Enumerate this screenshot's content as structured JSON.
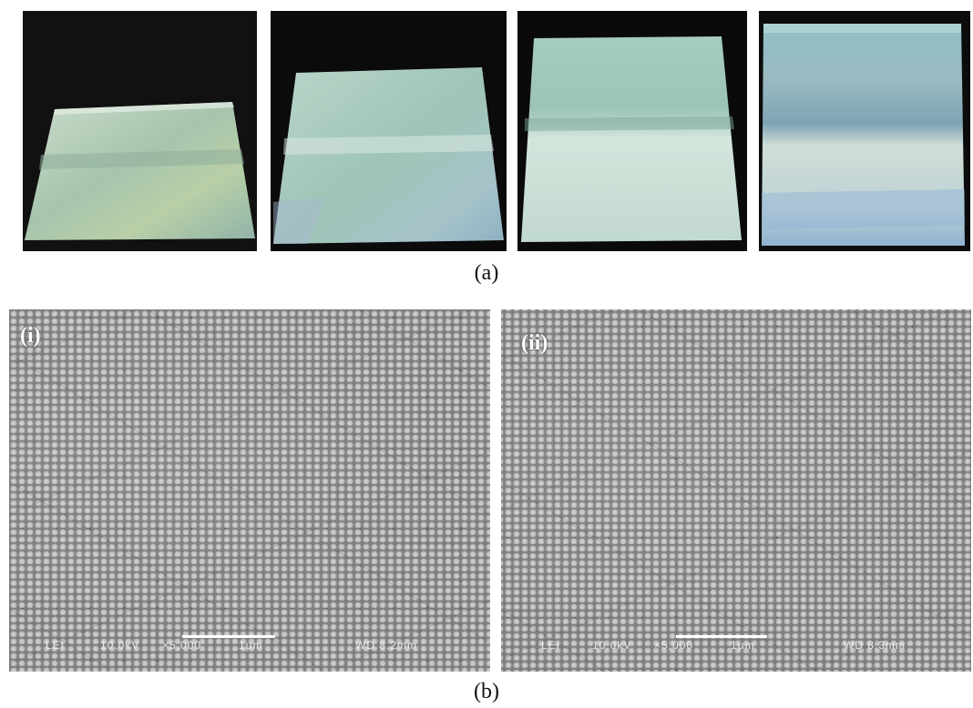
{
  "figure": {
    "caption_a": "(a)",
    "caption_b": "(b)"
  },
  "photos": [
    {
      "name": "photo-1",
      "slide_color": "#a9c9b7"
    },
    {
      "name": "photo-2",
      "slide_color": "#a6c7c0"
    },
    {
      "name": "photo-3",
      "slide_color": "#b3d2c9"
    },
    {
      "name": "photo-4",
      "slide_color": "#9fbcc8"
    }
  ],
  "sem": [
    {
      "label": "(i)",
      "databar": {
        "detector": "LEI",
        "kv": "10.0kV",
        "mag": "×5,000",
        "scale": "1μm",
        "wd": "WD 8.2mm"
      }
    },
    {
      "label": "(ii)",
      "databar": {
        "detector": "LEI",
        "kv": "10.0kV",
        "mag": "×5,000",
        "scale": "1μm",
        "wd": "WD 8.3mm"
      }
    }
  ]
}
